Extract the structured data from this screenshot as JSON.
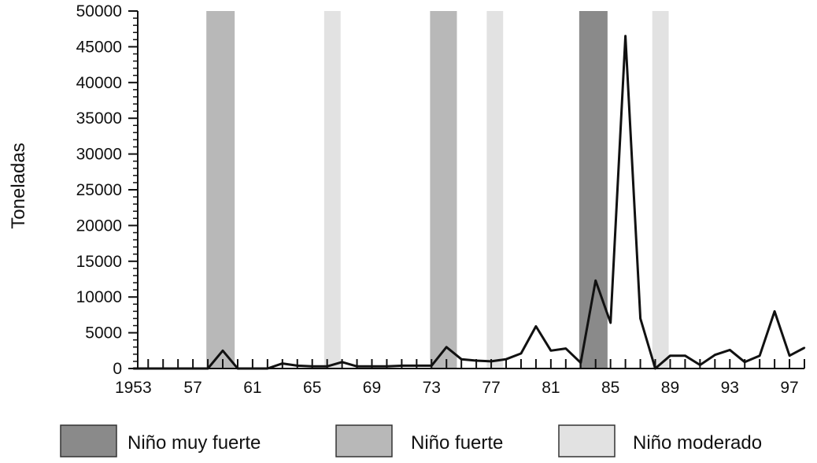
{
  "chart_data": {
    "type": "line",
    "ylabel": "Toneladas",
    "xlabel": "",
    "xlim": [
      1953,
      1998
    ],
    "ylim": [
      0,
      50000
    ],
    "grid": false,
    "x_tick_labels": [
      "1953",
      "57",
      "61",
      "65",
      "69",
      "73",
      "77",
      "81",
      "85",
      "89",
      "93",
      "97"
    ],
    "x_tick_values": [
      1953,
      1957,
      1961,
      1965,
      1969,
      1973,
      1977,
      1981,
      1985,
      1989,
      1993,
      1997
    ],
    "y_tick_labels": [
      "0",
      "5000",
      "10000",
      "15000",
      "20000",
      "25000",
      "30000",
      "35000",
      "40000",
      "45000",
      "50000"
    ],
    "y_tick_values": [
      0,
      5000,
      10000,
      15000,
      20000,
      25000,
      30000,
      35000,
      40000,
      45000,
      50000
    ],
    "series": [
      {
        "x": [
          1953,
          1954,
          1955,
          1956,
          1957,
          1958,
          1959,
          1960,
          1961,
          1962,
          1963,
          1964,
          1965,
          1966,
          1967,
          1968,
          1969,
          1970,
          1971,
          1972,
          1973,
          1974,
          1975,
          1976,
          1977,
          1978,
          1979,
          1980,
          1981,
          1982,
          1983,
          1984,
          1985,
          1986,
          1987,
          1988,
          1989,
          1990,
          1991,
          1992,
          1993,
          1994,
          1995,
          1996,
          1997,
          1998
        ],
        "values": [
          0,
          0,
          0,
          0,
          0,
          0,
          2500,
          0,
          0,
          0,
          700,
          400,
          300,
          300,
          900,
          300,
          300,
          300,
          400,
          400,
          400,
          3000,
          1300,
          1100,
          1000,
          1300,
          2100,
          5900,
          2500,
          2800,
          800,
          12300,
          6400,
          46500,
          7000,
          0,
          1800,
          1800,
          500,
          1900,
          2600,
          900,
          1800,
          8000,
          1800,
          2900
        ]
      }
    ],
    "bands": [
      {
        "category": "fuerte",
        "start": 1957.9,
        "end": 1959.8
      },
      {
        "category": "moderado",
        "start": 1965.8,
        "end": 1966.9
      },
      {
        "category": "fuerte",
        "start": 1972.9,
        "end": 1974.7
      },
      {
        "category": "moderado",
        "start": 1976.7,
        "end": 1977.8
      },
      {
        "category": "muy_fuerte",
        "start": 1982.9,
        "end": 1984.8
      },
      {
        "category": "moderado",
        "start": 1987.8,
        "end": 1988.9
      }
    ],
    "legend": [
      {
        "key": "muy_fuerte",
        "label": "Niño muy fuerte",
        "color": "#8a8a8a"
      },
      {
        "key": "fuerte",
        "label": "Niño fuerte",
        "color": "#b8b8b8"
      },
      {
        "key": "moderado",
        "label": "Niño moderado",
        "color": "#e2e2e2"
      }
    ],
    "legend_position": "bottom",
    "colors": {
      "line": "#111111",
      "axis": "#111111"
    }
  }
}
